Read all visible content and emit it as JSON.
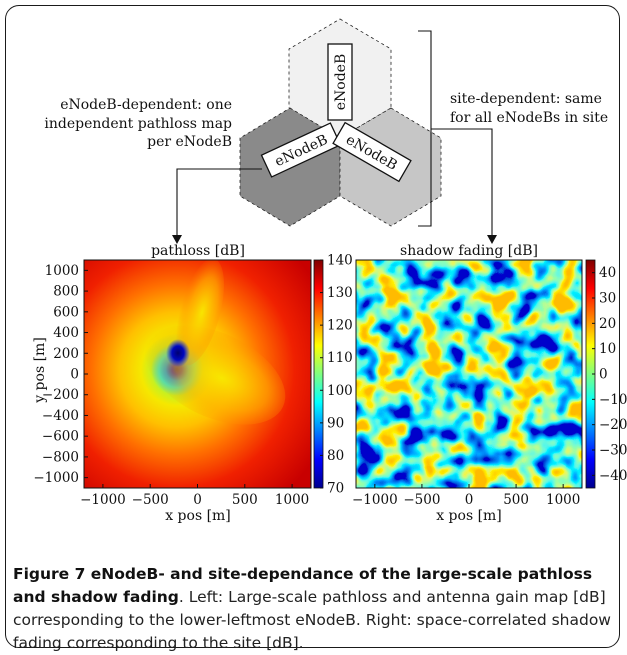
{
  "hex_labels": [
    "eNodeB",
    "eNodeB",
    "eNodeB"
  ],
  "annotations": {
    "left": [
      "eNodeB-dependent: one",
      "independent pathloss map",
      "per eNodeB"
    ],
    "right": [
      "site-dependent: same",
      "for all eNodeBs in site"
    ]
  },
  "colors": {
    "hex_top": "#f1f1f1",
    "hex_left": "#8a8a8a",
    "hex_right": "#c6c6c6"
  },
  "chart_data": [
    {
      "type": "heatmap",
      "title": "pathloss [dB]",
      "xlabel": "x pos [m]",
      "ylabel": "y pos [m]",
      "xlim": [
        -1200,
        1200
      ],
      "ylim": [
        -1100,
        1100
      ],
      "xticks": [
        "−1000",
        "−500",
        "0",
        "500",
        "1000"
      ],
      "yticks": [
        "1000",
        "800",
        "600",
        "400",
        "200",
        "0",
        "−200",
        "−400",
        "−600",
        "−800",
        "−1000"
      ],
      "colorbar": {
        "range": [
          70,
          140
        ],
        "ticks": [
          "140",
          "130",
          "120",
          "110",
          "100",
          "90",
          "80",
          "70"
        ]
      },
      "colormap": "jet"
    },
    {
      "type": "heatmap",
      "title": "shadow fading [dB]",
      "xlabel": "x pos [m]",
      "ylabel": "",
      "xlim": [
        -1200,
        1200
      ],
      "ylim": [
        -1100,
        1100
      ],
      "xticks": [
        "−1000",
        "−500",
        "0",
        "500",
        "1000"
      ],
      "yticks": [],
      "colorbar": {
        "range": [
          -45,
          45
        ],
        "ticks": [
          "40",
          "30",
          "20",
          "10",
          "0",
          "−10",
          "−20",
          "−30",
          "−40"
        ]
      },
      "colormap": "jet"
    }
  ],
  "caption": {
    "label": "Figure 7 eNodeB- and site-dependance of the large-scale pathloss and shadow fading",
    "text": ". Left: Large-scale pathloss and antenna gain map [dB] corresponding to the lower-leftmost eNodeB. Right: space-correlated shadow fading corresponding to the site [dB]."
  }
}
